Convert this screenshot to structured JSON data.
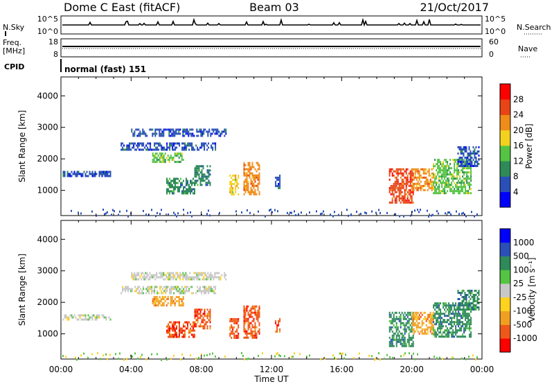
{
  "header": {
    "station": "Dome C East (fitACF)",
    "beam": "Beam 03",
    "date": "21/Oct/2017"
  },
  "top_panels": {
    "nsky_label": "N.Sky",
    "nsky_ticks": [
      "10^5",
      "10^0"
    ],
    "nsearch_label": "N.Search",
    "nsearch_ticks": [
      "10^5",
      "10^0"
    ],
    "freq_label_1": "Freq.",
    "freq_label_2": "[MHz]",
    "freq_ticks": [
      "18",
      "8"
    ],
    "nave_label": "Nave",
    "nave_ticks": [
      "60",
      "0"
    ],
    "cpid_label": "CPID",
    "cpid_text": "normal (fast) 151"
  },
  "chart_data": [
    {
      "type": "heatmap",
      "name": "power",
      "ylabel": "Slant Range [km]",
      "ylim": [
        200,
        4600
      ],
      "yticks": [
        "4000",
        "3000",
        "2000",
        "1000"
      ],
      "xlim_hours": [
        0,
        24
      ],
      "colorbar_label": "Power [dB]",
      "colorbar_ticks": [
        "28",
        "24",
        "20",
        "16",
        "12",
        "8",
        "4"
      ],
      "colors": [
        "#0000ff",
        "#2a50b8",
        "#2e8a59",
        "#54c442",
        "#f2d21e",
        "#f08c1a",
        "#e84416",
        "#ff0000"
      ],
      "regions": [
        {
          "t0": 0.1,
          "t1": 2.8,
          "r0": 1480,
          "r1": 1620,
          "level": 1
        },
        {
          "t0": 4.0,
          "t1": 9.4,
          "r0": 2720,
          "r1": 2960,
          "level": 1
        },
        {
          "t0": 3.4,
          "t1": 8.8,
          "r0": 2300,
          "r1": 2520,
          "level": 1
        },
        {
          "t0": 5.2,
          "t1": 7.0,
          "r0": 1900,
          "r1": 2200,
          "level": 3
        },
        {
          "t0": 6.0,
          "t1": 7.6,
          "r0": 900,
          "r1": 1400,
          "level": 2
        },
        {
          "t0": 7.6,
          "t1": 8.5,
          "r0": 1200,
          "r1": 1800,
          "level": 2
        },
        {
          "t0": 9.6,
          "t1": 10.1,
          "r0": 900,
          "r1": 1500,
          "level": 4
        },
        {
          "t0": 10.4,
          "t1": 11.3,
          "r0": 900,
          "r1": 1900,
          "level": 5
        },
        {
          "t0": 12.2,
          "t1": 12.5,
          "r0": 1100,
          "r1": 1500,
          "level": 1
        },
        {
          "t0": 18.7,
          "t1": 20.1,
          "r0": 600,
          "r1": 1700,
          "level": 6
        },
        {
          "t0": 20.0,
          "t1": 21.2,
          "r0": 1000,
          "r1": 1700,
          "level": 5
        },
        {
          "t0": 21.2,
          "t1": 23.4,
          "r0": 900,
          "r1": 2000,
          "level": 3
        },
        {
          "t0": 22.6,
          "t1": 23.8,
          "r0": 1800,
          "r1": 2400,
          "level": 1
        }
      ],
      "ground_band": {
        "r0": 200,
        "r1": 420,
        "density": 0.35
      }
    },
    {
      "type": "heatmap",
      "name": "velocity",
      "ylabel": "Slant Range [km]",
      "ylim": [
        200,
        4600
      ],
      "yticks": [
        "4000",
        "3000",
        "2000",
        "1000"
      ],
      "xlim_hours": [
        0,
        24
      ],
      "xticks": [
        "00:00",
        "04:00",
        "08:00",
        "12:00",
        "16:00",
        "20:00",
        "00:00"
      ],
      "xlabel": "Time UT",
      "colorbar_label": "Velocity [m s⁻¹]",
      "colorbar_ticks": [
        "1000",
        "500",
        "100",
        "25",
        "-25",
        "-100",
        "-500",
        "-1000"
      ],
      "colors": [
        "#ff0000",
        "#f0581a",
        "#f0a020",
        "#ffd21e",
        "#c8c8c8",
        "#54c442",
        "#2e8a59",
        "#2a50b8",
        "#0000ff"
      ],
      "regions": [
        {
          "t0": 0.1,
          "t1": 2.8,
          "r0": 1480,
          "r1": 1620,
          "level": 4
        },
        {
          "t0": 4.0,
          "t1": 9.4,
          "r0": 2720,
          "r1": 2960,
          "level": 4
        },
        {
          "t0": 3.4,
          "t1": 8.8,
          "r0": 2300,
          "r1": 2520,
          "level": 4
        },
        {
          "t0": 5.2,
          "t1": 7.0,
          "r0": 1900,
          "r1": 2200,
          "level": 2
        },
        {
          "t0": 6.0,
          "t1": 7.6,
          "r0": 900,
          "r1": 1400,
          "level": 1
        },
        {
          "t0": 7.6,
          "t1": 8.5,
          "r0": 1200,
          "r1": 1800,
          "level": 1
        },
        {
          "t0": 9.6,
          "t1": 10.1,
          "r0": 900,
          "r1": 1500,
          "level": 1
        },
        {
          "t0": 10.4,
          "t1": 11.3,
          "r0": 900,
          "r1": 1900,
          "level": 1
        },
        {
          "t0": 12.2,
          "t1": 12.5,
          "r0": 1100,
          "r1": 1500,
          "level": 1
        },
        {
          "t0": 18.7,
          "t1": 20.1,
          "r0": 600,
          "r1": 1700,
          "level": 6
        },
        {
          "t0": 20.0,
          "t1": 21.2,
          "r0": 1000,
          "r1": 1700,
          "level": 2
        },
        {
          "t0": 21.2,
          "t1": 23.4,
          "r0": 900,
          "r1": 2000,
          "level": 6
        },
        {
          "t0": 22.6,
          "t1": 23.8,
          "r0": 1800,
          "r1": 2400,
          "level": 6
        }
      ],
      "ground_band": {
        "r0": 200,
        "r1": 420,
        "density": 0.35
      }
    }
  ]
}
